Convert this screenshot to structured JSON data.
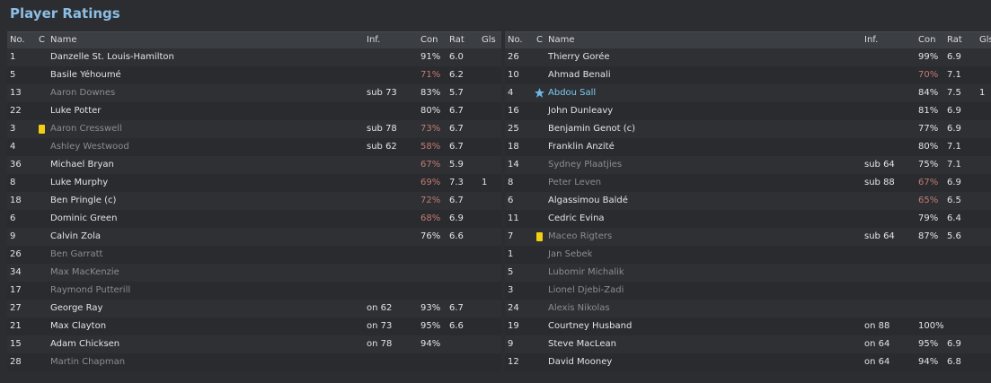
{
  "title": "Player Ratings",
  "tables": [
    {
      "headers": {
        "no": "No.",
        "c": "C",
        "name": "Name",
        "inf": "Inf.",
        "con": "Con",
        "rat": "Rat",
        "gls": "Gls"
      },
      "rows": [
        {
          "no": "1",
          "name": "Danzelle St. Louis-Hamilton",
          "con": "91%",
          "rat": "6.0"
        },
        {
          "no": "5",
          "name": "Basile Yéhoumé",
          "con": "71%",
          "rat": "6.2"
        },
        {
          "no": "13",
          "name": "Aaron Downes",
          "dim": true,
          "inf": "sub 73",
          "con": "83%",
          "rat": "5.7"
        },
        {
          "no": "22",
          "name": "Luke Potter",
          "con": "80%",
          "rat": "6.7"
        },
        {
          "no": "3",
          "yellow_card": true,
          "name": "Aaron Cresswell",
          "dim": true,
          "inf": "sub 78",
          "con": "73%",
          "rat": "6.7"
        },
        {
          "no": "4",
          "name": "Ashley Westwood",
          "dim": true,
          "inf": "sub 62",
          "con": "58%",
          "rat": "6.7"
        },
        {
          "no": "36",
          "name": "Michael Bryan",
          "con": "67%",
          "rat": "5.9"
        },
        {
          "no": "8",
          "name": "Luke Murphy",
          "con": "69%",
          "rat": "7.3",
          "gls": "1"
        },
        {
          "no": "18",
          "name": "Ben Pringle (c)",
          "con": "72%",
          "rat": "6.7"
        },
        {
          "no": "6",
          "name": "Dominic Green",
          "con": "68%",
          "rat": "6.9"
        },
        {
          "no": "9",
          "name": "Calvin Zola",
          "con": "76%",
          "rat": "6.6"
        },
        {
          "no": "26",
          "name": "Ben Garratt",
          "dim": true
        },
        {
          "no": "34",
          "name": "Max MacKenzie",
          "dim": true
        },
        {
          "no": "17",
          "name": "Raymond Putterill",
          "dim": true
        },
        {
          "no": "27",
          "name": "George Ray",
          "inf": "on 62",
          "con": "93%",
          "rat": "6.7"
        },
        {
          "no": "21",
          "name": "Max Clayton",
          "inf": "on 73",
          "con": "95%",
          "rat": "6.6"
        },
        {
          "no": "15",
          "name": "Adam Chicksen",
          "inf": "on 78",
          "con": "94%"
        },
        {
          "no": "28",
          "name": "Martin Chapman",
          "dim": true
        }
      ]
    },
    {
      "headers": {
        "no": "No.",
        "c": "C",
        "name": "Name",
        "inf": "Inf.",
        "con": "Con",
        "rat": "Rat",
        "gls": "Gls"
      },
      "rows": [
        {
          "no": "26",
          "name": "Thierry Gorée",
          "con": "99%",
          "rat": "6.9"
        },
        {
          "no": "10",
          "name": "Ahmad Benali",
          "con": "70%",
          "rat": "7.1"
        },
        {
          "no": "4",
          "star": true,
          "name": "Abdou Sall",
          "con": "84%",
          "rat": "7.5",
          "gls": "1"
        },
        {
          "no": "16",
          "name": "John Dunleavy",
          "con": "81%",
          "rat": "6.9"
        },
        {
          "no": "25",
          "name": "Benjamin Genot (c)",
          "con": "77%",
          "rat": "6.9"
        },
        {
          "no": "18",
          "name": "Franklin Anzité",
          "con": "80%",
          "rat": "7.1"
        },
        {
          "no": "14",
          "name": "Sydney Plaatjies",
          "dim": true,
          "inf": "sub 64",
          "con": "75%",
          "rat": "7.1"
        },
        {
          "no": "8",
          "name": "Peter Leven",
          "dim": true,
          "inf": "sub 88",
          "con": "67%",
          "rat": "6.9"
        },
        {
          "no": "6",
          "name": "Algassimou Baldé",
          "con": "65%",
          "rat": "6.5"
        },
        {
          "no": "11",
          "name": "Cedric Evina",
          "con": "79%",
          "rat": "6.4"
        },
        {
          "no": "7",
          "yellow_card": true,
          "name": "Maceo Rigters",
          "dim": true,
          "inf": "sub 64",
          "con": "87%",
          "rat": "5.6"
        },
        {
          "no": "1",
          "name": "Jan Sebek",
          "dim": true
        },
        {
          "no": "5",
          "name": "Lubomir Michalik",
          "dim": true
        },
        {
          "no": "3",
          "name": "Lionel Djebi-Zadi",
          "dim": true
        },
        {
          "no": "24",
          "name": "Alexis Nikolas",
          "dim": true
        },
        {
          "no": "19",
          "name": "Courtney Husband",
          "inf": "on 88",
          "con": "100%"
        },
        {
          "no": "9",
          "name": "Steve MacLean",
          "inf": "on 64",
          "con": "95%",
          "rat": "6.9"
        },
        {
          "no": "12",
          "name": "David Mooney",
          "inf": "on 64",
          "con": "94%",
          "rat": "6.8"
        }
      ]
    }
  ]
}
